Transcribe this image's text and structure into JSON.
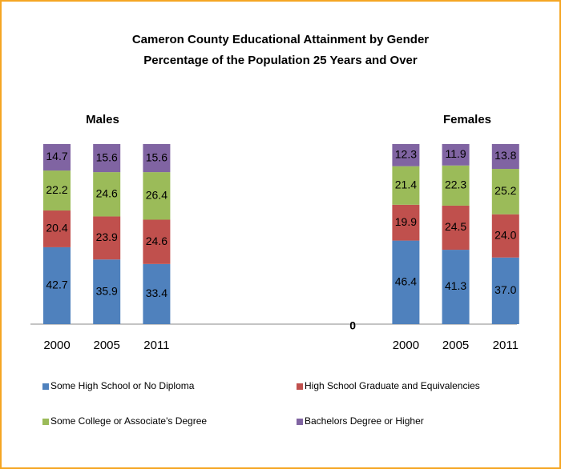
{
  "chart_data": {
    "type": "stacked_bar",
    "title": [
      "Cameron County Educational  Attainment by Gender",
      "Percentage of the Population  25 Years and Over"
    ],
    "annotations": [
      "Males",
      "Females"
    ],
    "categories": [
      "2000",
      "2005",
      "2011",
      null,
      null,
      null,
      null,
      "2000",
      "2005",
      "2011"
    ],
    "ylim": [
      0,
      100
    ],
    "yticks": [
      0
    ],
    "grid": false,
    "legend": "bottom",
    "series": [
      {
        "name": "Some High School or No Diploma",
        "color": "#4f81bd",
        "values": [
          42.7,
          35.9,
          33.4,
          null,
          null,
          null,
          null,
          46.4,
          41.3,
          37
        ],
        "value_labels": [
          "42.7",
          "35.9",
          "33.4",
          null,
          null,
          null,
          null,
          "46.4",
          "41.3",
          "37.0"
        ]
      },
      {
        "name": "High School Graduate  and Equivalencies",
        "color": "#c0504d",
        "values": [
          20.4,
          23.9,
          24.6,
          null,
          null,
          null,
          null,
          19.9,
          24.5,
          24
        ],
        "value_labels": [
          "20.4",
          "23.9",
          "24.6",
          null,
          null,
          null,
          null,
          "19.9",
          "24.5",
          "24.0"
        ]
      },
      {
        "name": "Some College or Associate's Degree",
        "color": "#9bbb59",
        "values": [
          22.2,
          24.6,
          26.4,
          null,
          null,
          null,
          null,
          21.4,
          22.3,
          25.2
        ],
        "value_labels": [
          "22.2",
          "24.6",
          "26.4",
          null,
          null,
          null,
          null,
          "21.4",
          "22.3",
          "25.2"
        ]
      },
      {
        "name": "Bachelors Degree or Higher",
        "color": "#8064a2",
        "values": [
          14.7,
          15.6,
          15.6,
          null,
          null,
          null,
          null,
          12.3,
          11.9,
          13.8
        ],
        "value_labels": [
          "14.7",
          "15.6",
          "15.6",
          null,
          null,
          null,
          null,
          "12.3",
          "11.9",
          "13.8"
        ]
      }
    ]
  }
}
